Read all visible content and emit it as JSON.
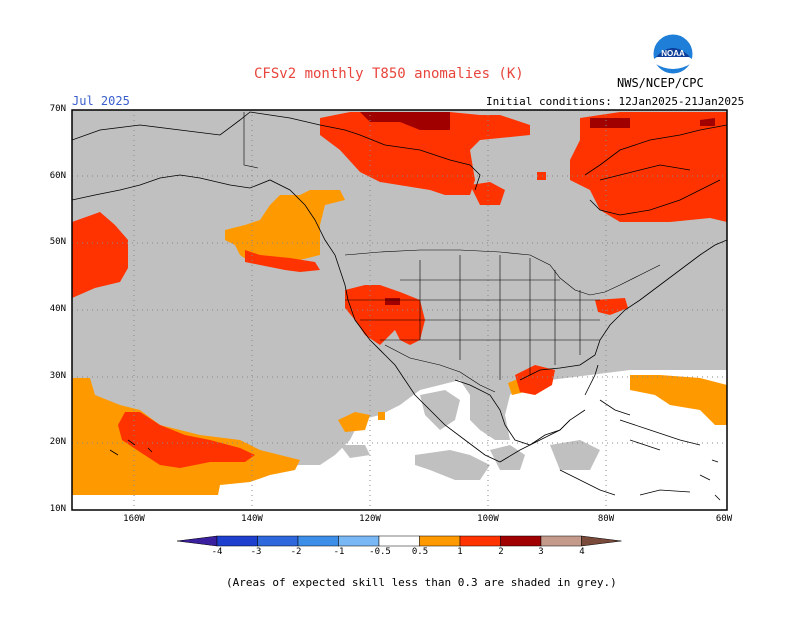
{
  "header": {
    "title": "CFSv2 monthly T850 anomalies (K)",
    "month": "Jul 2025",
    "initial_conditions": "Initial conditions: 12Jan2025-21Jan2025",
    "agency": "NWS/NCEP/CPC",
    "logo_text": "NOAA"
  },
  "map": {
    "lat_labels": [
      "70N",
      "60N",
      "50N",
      "40N",
      "30N",
      "20N",
      "10N"
    ],
    "lon_labels": [
      "160W",
      "140W",
      "120W",
      "100W",
      "80W",
      "60W"
    ],
    "colors": {
      "ocean_land_skill": "#ffffff",
      "low_skill_grey": "#c0c0c0",
      "anomaly_0_5_to_1": "#ff9900",
      "anomaly_1_to_2": "#ff3300",
      "anomaly_2_to_3": "#a00000",
      "gridline": "#888888"
    }
  },
  "colorbar": {
    "labels": [
      "-4",
      "-3",
      "-2",
      "-1",
      "-0.5",
      "0.5",
      "1",
      "2",
      "3",
      "4"
    ],
    "colors": [
      "#3a1f9e",
      "#1f3fcf",
      "#2f67dc",
      "#3d8ee8",
      "#7ab8f5",
      "#ffffff",
      "#ff9900",
      "#ff3300",
      "#a00000",
      "#c49a8a",
      "#7a4a3a"
    ]
  },
  "footer": {
    "note": "(Areas of expected skill less than 0.3 are shaded in grey.)"
  }
}
